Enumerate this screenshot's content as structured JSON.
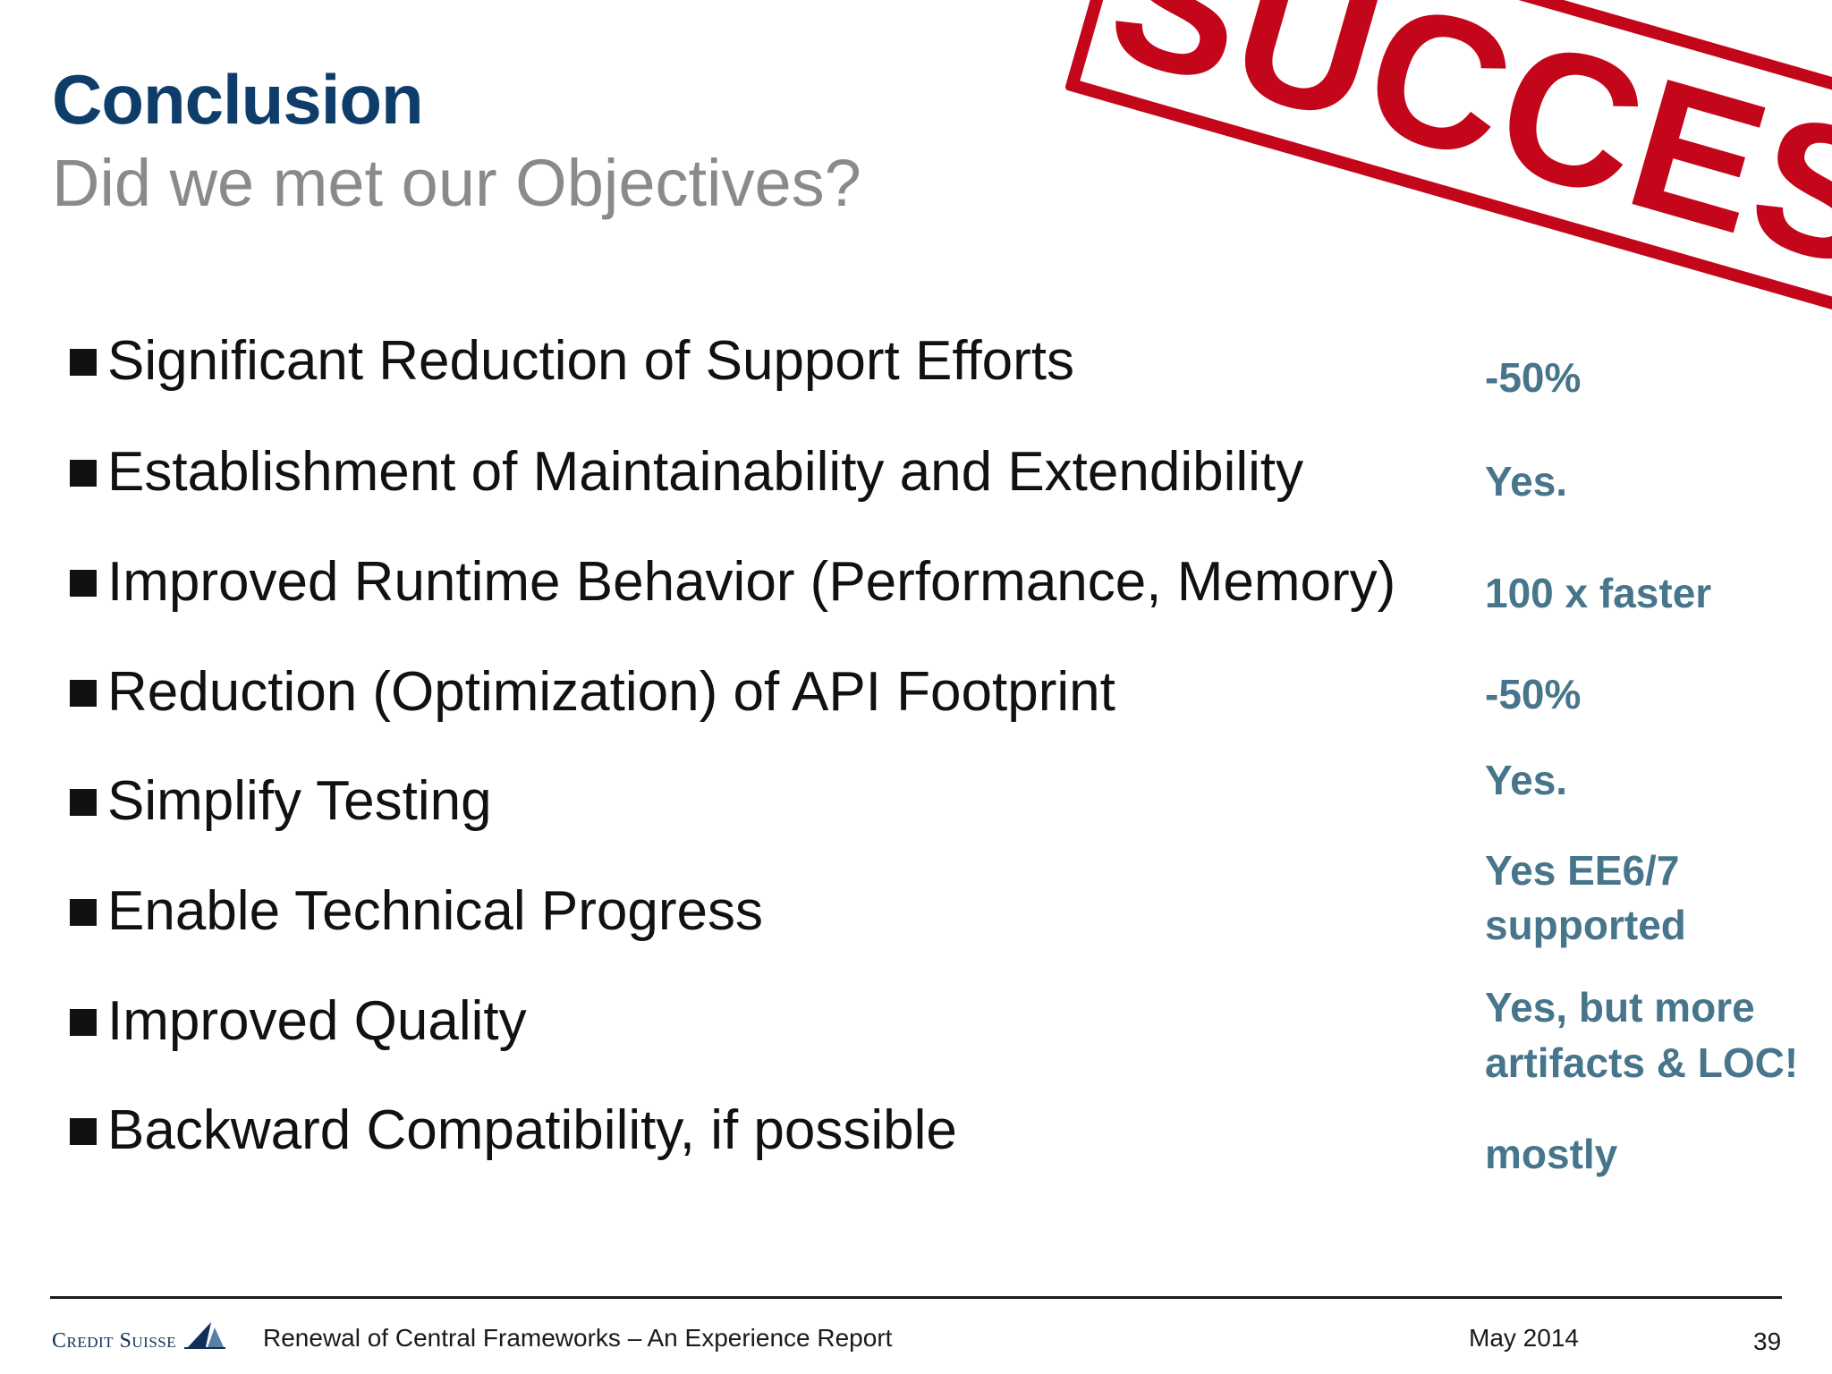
{
  "header": {
    "title": "Conclusion",
    "subtitle": "Did we met our Objectives?"
  },
  "stamp": {
    "text": "SUCCESS",
    "color": "#c4061a"
  },
  "objectives": [
    {
      "text": "Significant Reduction of Support Efforts",
      "result": "-50%"
    },
    {
      "text": "Establishment of Maintainability and Extendibility",
      "result": "Yes."
    },
    {
      "text": "Improved Runtime Behavior (Performance, Memory)",
      "result": "100 x faster"
    },
    {
      "text": "Reduction (Optimization) of API Footprint",
      "result": "-50%"
    },
    {
      "text": "Simplify Testing",
      "result": "Yes."
    },
    {
      "text": "Enable Technical Progress",
      "result_line1": "Yes EE6/7",
      "result_line2": "supported"
    },
    {
      "text": "Improved Quality",
      "result_line1": "Yes, but more",
      "result_line2": "artifacts & LOC!"
    },
    {
      "text": "Backward Compatibility, if possible",
      "result": "mostly"
    }
  ],
  "footer": {
    "logo_text": "Credit Suisse",
    "report_title": "Renewal of Central Frameworks – An Experience Report",
    "date": "May 2014",
    "page_number": "39"
  },
  "colors": {
    "title": "#0f3d6a",
    "subtitle": "#8a8a8a",
    "result": "#47758b",
    "bullet": "#111111"
  }
}
